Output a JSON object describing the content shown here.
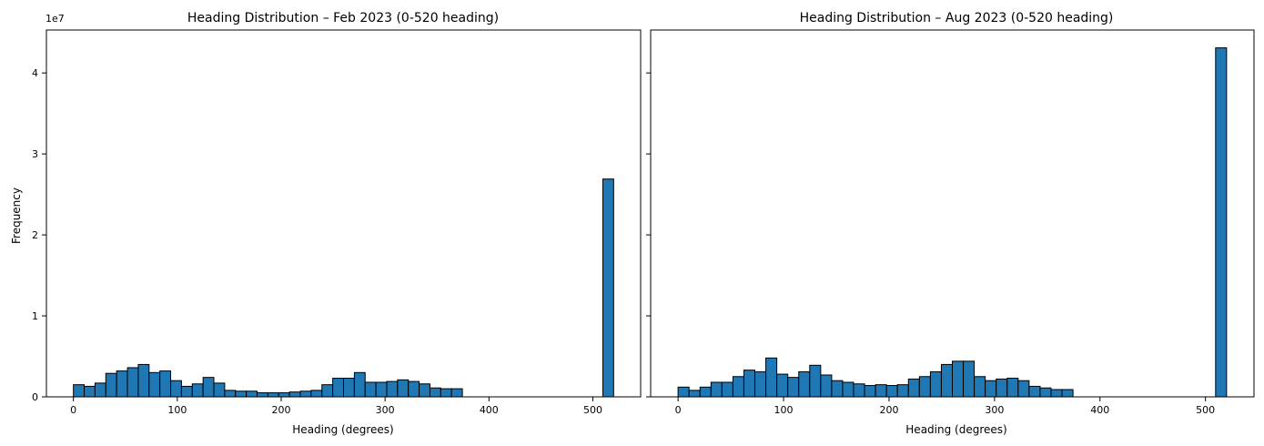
{
  "chart_data": [
    {
      "type": "bar",
      "title": "Heading Distribution – Feb 2023 (0-520 heading)",
      "xlabel": "Heading (degrees)",
      "ylabel": "Frequency",
      "y_offset_label": "1e7",
      "xlim": [
        -26,
        546
      ],
      "ylim": [
        0,
        45300000
      ],
      "xticks": [
        0,
        100,
        200,
        300,
        400,
        500
      ],
      "yticks": [
        0,
        10000000,
        20000000,
        30000000,
        40000000
      ],
      "ytick_labels": [
        "0",
        "1",
        "2",
        "3",
        "4"
      ],
      "grid": false,
      "bar_color": "#1f77b4",
      "edge_color": "#000000",
      "bin_width": 10.4,
      "bin_start": 0,
      "values": [
        1500000,
        1300000,
        1700000,
        2900000,
        3200000,
        3600000,
        4000000,
        3000000,
        3200000,
        2000000,
        1300000,
        1600000,
        2400000,
        1700000,
        800000,
        700000,
        700000,
        500000,
        500000,
        500000,
        600000,
        700000,
        800000,
        1500000,
        2300000,
        2300000,
        3000000,
        1800000,
        1800000,
        1900000,
        2100000,
        1900000,
        1600000,
        1100000,
        1000000,
        1000000,
        0,
        0,
        0,
        0,
        0,
        0,
        0,
        0,
        0,
        0,
        0,
        0,
        0,
        26900000
      ]
    },
    {
      "type": "bar",
      "title": "Heading Distribution – Aug 2023 (0-520 heading)",
      "xlabel": "Heading (degrees)",
      "ylabel": "",
      "xlim": [
        -26,
        546
      ],
      "ylim": [
        0,
        45300000
      ],
      "xticks": [
        0,
        100,
        200,
        300,
        400,
        500
      ],
      "yticks": [
        0,
        10000000,
        20000000,
        30000000,
        40000000
      ],
      "grid": false,
      "bar_color": "#1f77b4",
      "edge_color": "#000000",
      "bin_width": 10.4,
      "bin_start": 0,
      "values": [
        1200000,
        800000,
        1200000,
        1800000,
        1800000,
        2500000,
        3300000,
        3100000,
        4800000,
        2800000,
        2400000,
        3100000,
        3900000,
        2700000,
        2000000,
        1800000,
        1600000,
        1400000,
        1500000,
        1400000,
        1500000,
        2200000,
        2500000,
        3100000,
        4000000,
        4400000,
        4400000,
        2500000,
        2000000,
        2200000,
        2300000,
        2000000,
        1300000,
        1100000,
        900000,
        900000,
        0,
        0,
        0,
        0,
        0,
        0,
        0,
        0,
        0,
        0,
        0,
        0,
        0,
        43100000
      ]
    }
  ]
}
